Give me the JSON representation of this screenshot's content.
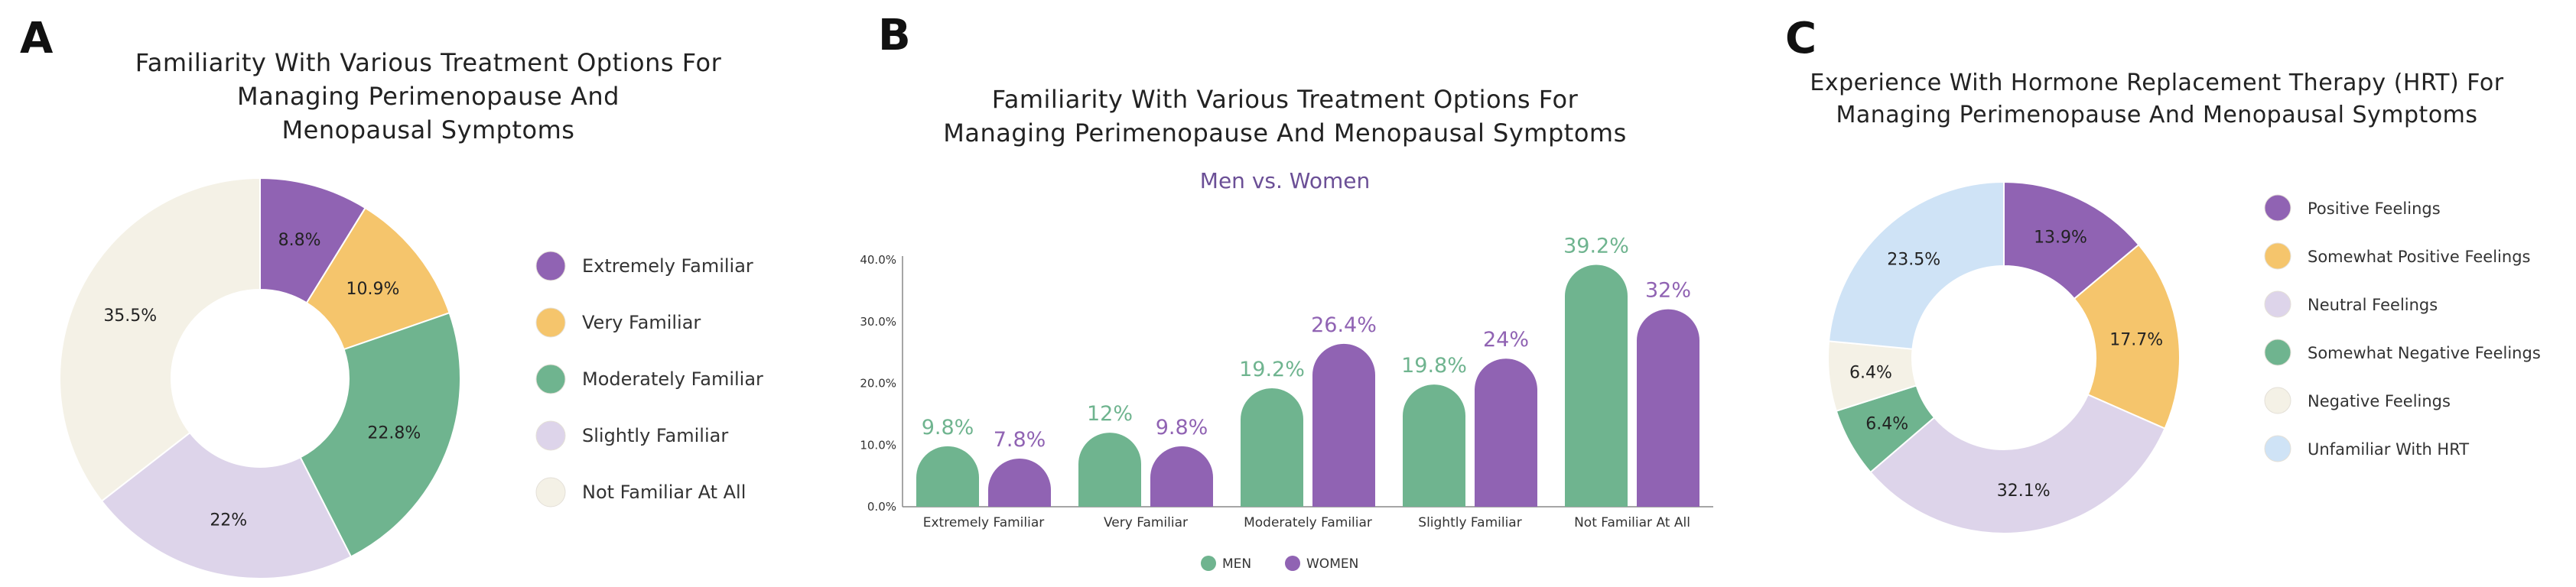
{
  "colors": {
    "purple": "#9063b3",
    "yellow": "#f5c56c",
    "green": "#6fb48f",
    "lavender": "#ddd4ea",
    "cream": "#f4f1e6",
    "lightblue": "#cfe3f6"
  },
  "chart_data": [
    {
      "panel": "A",
      "type": "pie",
      "title": "Familiarity With Various Treatment Options For Managing Perimenopause And Menopausal Symptoms",
      "title_lines": [
        "Familiarity With Various Treatment Options For",
        "Managing Perimenopause And",
        "Menopausal Symptoms"
      ],
      "categories": [
        "Extremely Familiar",
        "Very Familiar",
        "Moderately Familiar",
        "Slightly Familiar",
        "Not Familiar At All"
      ],
      "values": [
        8.8,
        10.9,
        22.8,
        22,
        35.5
      ],
      "value_labels": [
        "8.8%",
        "10.9%",
        "22.8%",
        "22%",
        "35.5%"
      ],
      "colors": [
        "#9063b3",
        "#f5c56c",
        "#6fb48f",
        "#ddd4ea",
        "#f4f1e6"
      ],
      "legend_position": "right"
    },
    {
      "panel": "B",
      "type": "bar",
      "title": "Familiarity With Various Treatment Options For Managing Perimenopause And Menopausal Symptoms",
      "title_lines": [
        "Familiarity With Various Treatment Options For",
        "Managing Perimenopause And Menopausal Symptoms"
      ],
      "subtitle": "Men vs. Women",
      "categories": [
        "Extremely Familiar",
        "Very Familiar",
        "Moderately Familiar",
        "Slightly Familiar",
        "Not Familiar At All"
      ],
      "series": [
        {
          "name": "MEN",
          "values": [
            9.8,
            12,
            19.2,
            19.8,
            39.2
          ],
          "labels": [
            "9.8%",
            "12%",
            "19.2%",
            "19.8%",
            "39.2%"
          ],
          "color": "#6fb48f"
        },
        {
          "name": "WOMEN",
          "values": [
            7.8,
            9.8,
            26.4,
            24,
            32
          ],
          "labels": [
            "7.8%",
            "9.8%",
            "26.4%",
            "24%",
            "32%"
          ],
          "color": "#9063b3"
        }
      ],
      "yticks": [
        0,
        10,
        20,
        30,
        40
      ],
      "ytick_labels": [
        "0.0%",
        "10.0%",
        "20.0%",
        "30.0%",
        "40.0%"
      ],
      "ylim": [
        0,
        40
      ],
      "xlabel": "",
      "ylabel": "",
      "legend_position": "bottom"
    },
    {
      "panel": "C",
      "type": "pie",
      "title": "Experience With Hormone Replacement Therapy (HRT) For Managing Perimenopause And Menopausal Symptoms",
      "title_lines": [
        "Experience With Hormone Replacement Therapy (HRT) For",
        "Managing Perimenopause And Menopausal Symptoms"
      ],
      "categories": [
        "Positive Feelings",
        "Somewhat Positive Feelings",
        "Neutral Feelings",
        "Somewhat Negative Feelings",
        "Negative Feelings",
        "Unfamiliar With HRT"
      ],
      "values": [
        13.9,
        17.7,
        32.1,
        6.4,
        6.4,
        23.5
      ],
      "value_labels": [
        "13.9%",
        "17.7%",
        "32.1%",
        "6.4%",
        "6.4%",
        "23.5%"
      ],
      "colors": [
        "#9063b3",
        "#f5c56c",
        "#ddd4ea",
        "#6fb48f",
        "#f4f1e6",
        "#cfe3f6"
      ],
      "legend_position": "right"
    }
  ]
}
